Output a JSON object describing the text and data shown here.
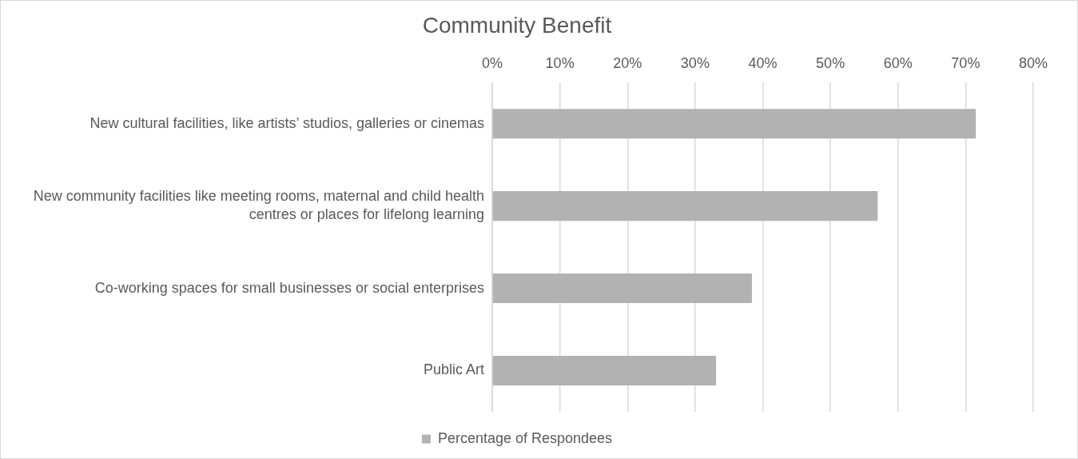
{
  "chart_data": {
    "type": "bar",
    "orientation": "horizontal",
    "title": "Community Benefit",
    "categories": [
      "New cultural facilities, like artists’ studios, galleries or cinemas",
      "New community facilities like meeting rooms, maternal and child health centres or places for lifelong learning",
      "Co-working spaces for small businesses or social enterprises",
      "Public Art"
    ],
    "series": [
      {
        "name": "Percentage of Respondees",
        "color": "#b2b2b2",
        "values": [
          71.5,
          57.0,
          38.4,
          33.1
        ]
      }
    ],
    "xlim": [
      0,
      80
    ],
    "xticks": [
      {
        "value": 0,
        "label": "0%"
      },
      {
        "value": 10,
        "label": "10%"
      },
      {
        "value": 20,
        "label": "20%"
      },
      {
        "value": 30,
        "label": "30%"
      },
      {
        "value": 40,
        "label": "40%"
      },
      {
        "value": 50,
        "label": "50%"
      },
      {
        "value": 60,
        "label": "60%"
      },
      {
        "value": 70,
        "label": "70%"
      },
      {
        "value": 80,
        "label": "80%"
      }
    ],
    "grid": "x",
    "legend": "bottom"
  }
}
